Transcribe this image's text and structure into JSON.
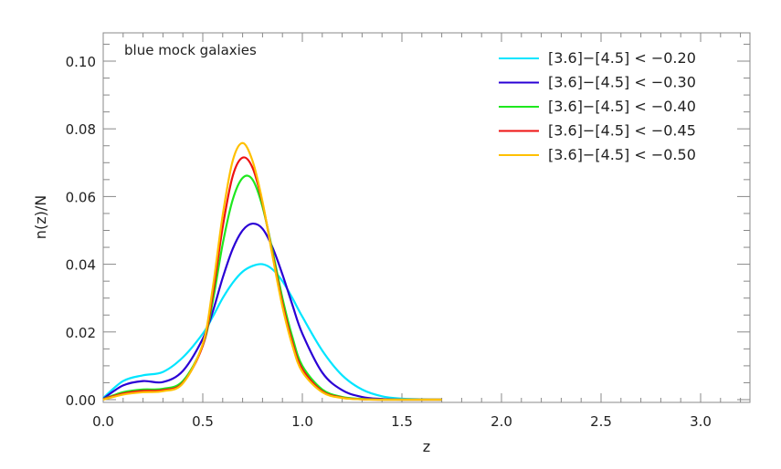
{
  "chart_data": {
    "type": "line",
    "title": "",
    "annotation": "blue mock galaxies",
    "xlabel": "z",
    "ylabel": "n(z)/N",
    "xlim": [
      0.0,
      3.2
    ],
    "ylim": [
      0.0,
      0.108
    ],
    "xticks": [
      "0.0",
      "0.5",
      "1.0",
      "1.5",
      "2.0",
      "2.5",
      "3.0"
    ],
    "yticks": [
      "0.00",
      "0.02",
      "0.04",
      "0.06",
      "0.08",
      "0.10"
    ],
    "grid": false,
    "legend_position": "upper right",
    "x": [
      0.0,
      0.1,
      0.2,
      0.3,
      0.4,
      0.5,
      0.55,
      0.6,
      0.65,
      0.7,
      0.75,
      0.8,
      0.85,
      0.9,
      0.95,
      1.0,
      1.1,
      1.2,
      1.3,
      1.4,
      1.5,
      1.6,
      1.7
    ],
    "series": [
      {
        "name": "[3.6]−[4.5] < −0.20",
        "color": "#00e5ff",
        "values": [
          0.0005,
          0.0055,
          0.0072,
          0.0082,
          0.0125,
          0.0195,
          0.0245,
          0.03,
          0.0345,
          0.0378,
          0.0395,
          0.04,
          0.0385,
          0.035,
          0.03,
          0.0245,
          0.0145,
          0.0072,
          0.003,
          0.001,
          0.0003,
          0.0001,
          0.0
        ]
      },
      {
        "name": "[3.6]−[4.5] < −0.30",
        "color": "#2a00d5",
        "values": [
          0.0003,
          0.0042,
          0.0055,
          0.0052,
          0.0085,
          0.018,
          0.026,
          0.036,
          0.0445,
          0.05,
          0.052,
          0.0505,
          0.045,
          0.037,
          0.028,
          0.0195,
          0.008,
          0.0028,
          0.0008,
          0.0002,
          0.0,
          0.0,
          0.0
        ]
      },
      {
        "name": "[3.6]−[4.5] < −0.40",
        "color": "#1ee81e",
        "values": [
          0.0002,
          0.0022,
          0.003,
          0.0032,
          0.0055,
          0.016,
          0.029,
          0.046,
          0.059,
          0.0655,
          0.065,
          0.057,
          0.044,
          0.03,
          0.0185,
          0.01,
          0.003,
          0.0008,
          0.0002,
          0.0,
          0.0,
          0.0,
          0.0
        ]
      },
      {
        "name": "[3.6]−[4.5] < −0.45",
        "color": "#ee1111",
        "values": [
          0.0001,
          0.0018,
          0.0026,
          0.0028,
          0.005,
          0.016,
          0.031,
          0.051,
          0.066,
          0.0715,
          0.0685,
          0.058,
          0.043,
          0.0285,
          0.017,
          0.009,
          0.0025,
          0.0006,
          0.0001,
          0.0,
          0.0,
          0.0,
          0.0
        ]
      },
      {
        "name": "[3.6]−[4.5] < −0.50",
        "color": "#ffc000",
        "values": [
          0.0,
          0.0015,
          0.0022,
          0.0025,
          0.0048,
          0.0165,
          0.033,
          0.0545,
          0.0705,
          0.0758,
          0.0705,
          0.0585,
          0.0425,
          0.0275,
          0.016,
          0.0082,
          0.0022,
          0.0005,
          0.0001,
          0.0,
          0.0,
          0.0,
          0.0
        ]
      }
    ]
  }
}
